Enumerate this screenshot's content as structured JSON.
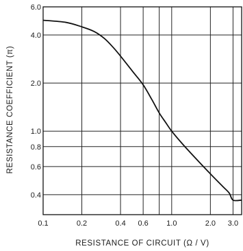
{
  "chart_data": {
    "type": "line",
    "xlabel": "RESISTANCE OF CIRCUIT (Ω / V)",
    "ylabel": "RESISTANCE COEFFICIENT (π)",
    "xscale": "log",
    "yscale": "log",
    "xlim": [
      0.1,
      3.5
    ],
    "ylim": [
      0.3,
      6.0
    ],
    "grid": true,
    "x_ticks": [
      {
        "value": 0.1,
        "label": "0.1"
      },
      {
        "value": 0.2,
        "label": "0.2"
      },
      {
        "value": 0.4,
        "label": "0.4"
      },
      {
        "value": 0.6,
        "label": "0.6"
      },
      {
        "value": 1.0,
        "label": "1.0"
      },
      {
        "value": 2.0,
        "label": "2.0"
      },
      {
        "value": 3.0,
        "label": "3.0"
      }
    ],
    "x_gridlines": [
      0.2,
      0.4,
      0.6,
      0.8,
      1.0,
      2.0,
      3.0
    ],
    "y_ticks": [
      {
        "value": 0.4,
        "label": "0.4"
      },
      {
        "value": 0.6,
        "label": "0.6"
      },
      {
        "value": 0.8,
        "label": "0.8"
      },
      {
        "value": 1.0,
        "label": "1.0"
      },
      {
        "value": 2.0,
        "label": "2.0"
      },
      {
        "value": 4.0,
        "label": "4.0"
      },
      {
        "value": 6.0,
        "label": "6.0"
      }
    ],
    "y_gridlines": [
      0.4,
      0.6,
      0.8,
      1.0,
      2.0,
      4.0
    ],
    "series": [
      {
        "points": [
          [
            0.1,
            4.95
          ],
          [
            0.15,
            4.8
          ],
          [
            0.2,
            4.5
          ],
          [
            0.25,
            4.2
          ],
          [
            0.3,
            3.8
          ],
          [
            0.35,
            3.35
          ],
          [
            0.4,
            2.95
          ],
          [
            0.5,
            2.35
          ],
          [
            0.6,
            1.95
          ],
          [
            0.7,
            1.58
          ],
          [
            0.8,
            1.3
          ],
          [
            0.9,
            1.13
          ],
          [
            1.0,
            1.0
          ],
          [
            1.2,
            0.84
          ],
          [
            1.5,
            0.69
          ],
          [
            2.0,
            0.54
          ],
          [
            2.5,
            0.45
          ],
          [
            2.8,
            0.41
          ],
          [
            3.0,
            0.37
          ],
          [
            3.5,
            0.37
          ]
        ],
        "color": "#111111"
      }
    ]
  }
}
